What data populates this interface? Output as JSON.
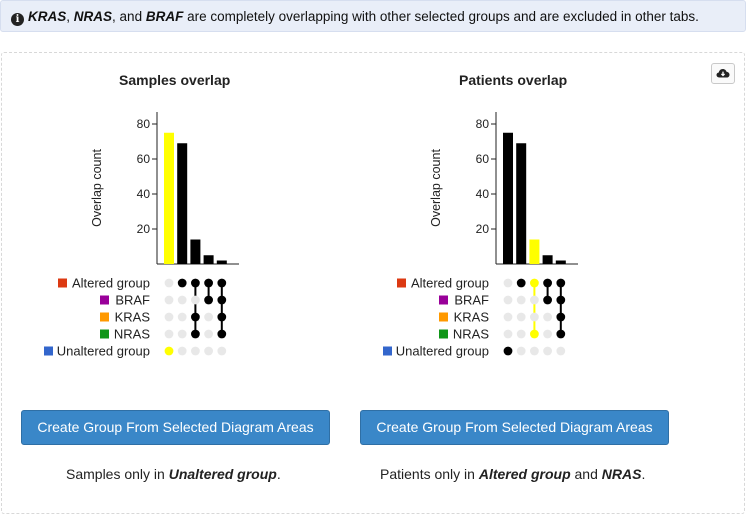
{
  "alert": {
    "icon": "info-icon",
    "genes": [
      "KRAS",
      "NRAS",
      "BRAF"
    ],
    "sep1": ", ",
    "sep2": ", and ",
    "text": " are completely overlapping with other selected groups and are excluded in other tabs."
  },
  "download": {
    "icon": "cloud-download-icon"
  },
  "groups": [
    {
      "name": "Altered group",
      "color": "#dc3912"
    },
    {
      "name": "BRAF",
      "color": "#990099"
    },
    {
      "name": "KRAS",
      "color": "#ff9900"
    },
    {
      "name": "NRAS",
      "color": "#109618"
    },
    {
      "name": "Unaltered group",
      "color": "#3366cc"
    }
  ],
  "samples": {
    "title": "Samples overlap",
    "button_label": "Create Group From Selected Diagram Areas",
    "summary_prefix": "Samples only in ",
    "summary_groups": [
      "Unaltered group"
    ],
    "summary_joiner": " and ",
    "summary_suffix": "."
  },
  "patients": {
    "title": "Patients overlap",
    "button_label": "Create Group From Selected Diagram Areas",
    "summary_prefix": "Patients only in ",
    "summary_groups": [
      "Altered group",
      "NRAS"
    ],
    "summary_joiner": " and ",
    "summary_suffix": "."
  },
  "chart_data": [
    {
      "type": "bar",
      "title": "Samples overlap",
      "ylabel": "Overlap count",
      "ylim": [
        0,
        80
      ],
      "yticks": [
        20,
        40,
        60,
        80
      ],
      "values": [
        75,
        69,
        14,
        5,
        2
      ],
      "bar_colors": [
        "#ffff00",
        "#000000",
        "#000000",
        "#000000",
        "#000000"
      ],
      "sets": [
        [
          4
        ],
        [
          0
        ],
        [
          0,
          2,
          3
        ],
        [
          0,
          1
        ],
        [
          0,
          1,
          2,
          3
        ]
      ],
      "selected_index": 0
    },
    {
      "type": "bar",
      "title": "Patients overlap",
      "ylabel": "Overlap count",
      "ylim": [
        0,
        80
      ],
      "yticks": [
        20,
        40,
        60,
        80
      ],
      "values": [
        75,
        69,
        14,
        5,
        2
      ],
      "bar_colors": [
        "#000000",
        "#000000",
        "#ffff00",
        "#000000",
        "#000000"
      ],
      "sets": [
        [
          4
        ],
        [
          0
        ],
        [
          0,
          3
        ],
        [
          0,
          1
        ],
        [
          0,
          1,
          2,
          3
        ]
      ],
      "selected_index": 2
    }
  ]
}
